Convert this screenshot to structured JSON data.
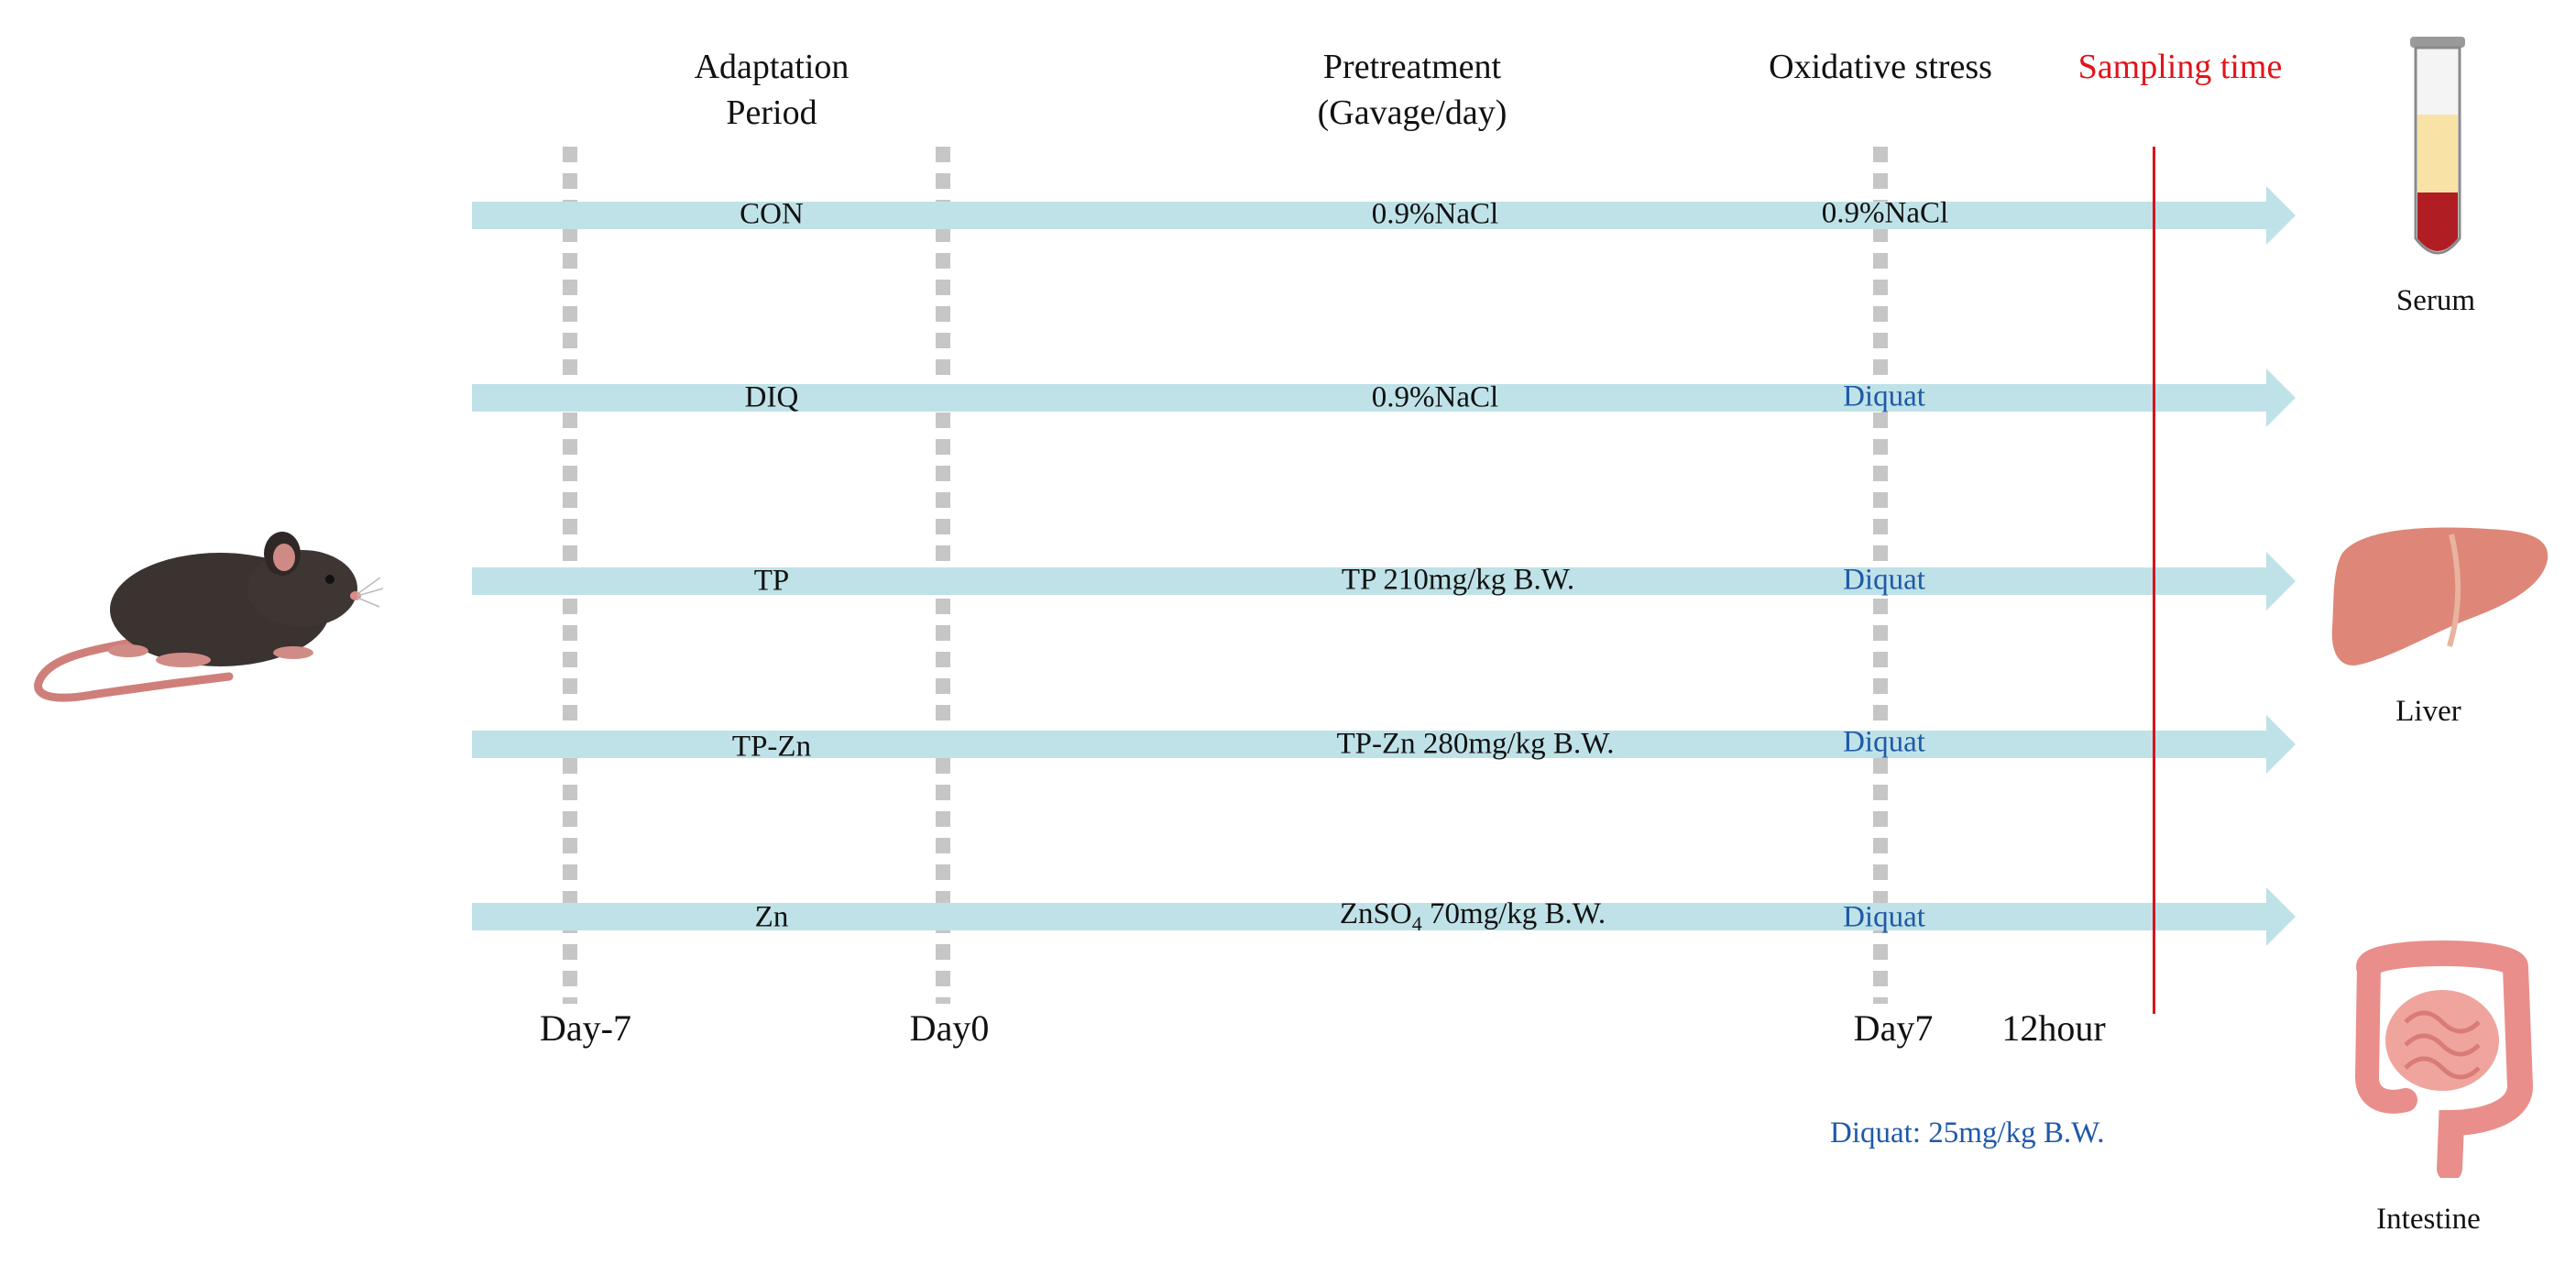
{
  "headers": {
    "adaptation": [
      "Adaptation",
      "Period"
    ],
    "pretreatment": [
      "Pretreatment",
      "(Gavage/day)"
    ],
    "oxidative": "Oxidative stress",
    "sampling": "Sampling time"
  },
  "groups": [
    {
      "name": "CON",
      "pretreatment": "0.9%NaCl",
      "stress": "0.9%NaCl"
    },
    {
      "name": "DIQ",
      "pretreatment": "0.9%NaCl",
      "stress": "Diquat"
    },
    {
      "name": "TP",
      "pretreatment": "TP 210mg/kg B.W.",
      "stress": "Diquat"
    },
    {
      "name": "TP-Zn",
      "pretreatment": "TP-Zn 280mg/kg B.W.",
      "stress": "Diquat"
    },
    {
      "name": "Zn",
      "pretreatment_parts": [
        "ZnSO",
        "4",
        " 70mg/kg B.W."
      ],
      "stress": "Diquat"
    }
  ],
  "timeline": {
    "day_minus7": "Day-7",
    "day0": "Day0",
    "day7": "Day7",
    "hour12": "12hour"
  },
  "note": "Diquat: 25mg/kg B.W.",
  "organs": {
    "serum": "Serum",
    "liver": "Liver",
    "intestine": "Intestine"
  },
  "colors": {
    "arrow": "#bfe2e8",
    "sampling_line": "#d8141b",
    "diquat_text": "#1f59a8",
    "dashed_line": "#c6c6c6"
  }
}
